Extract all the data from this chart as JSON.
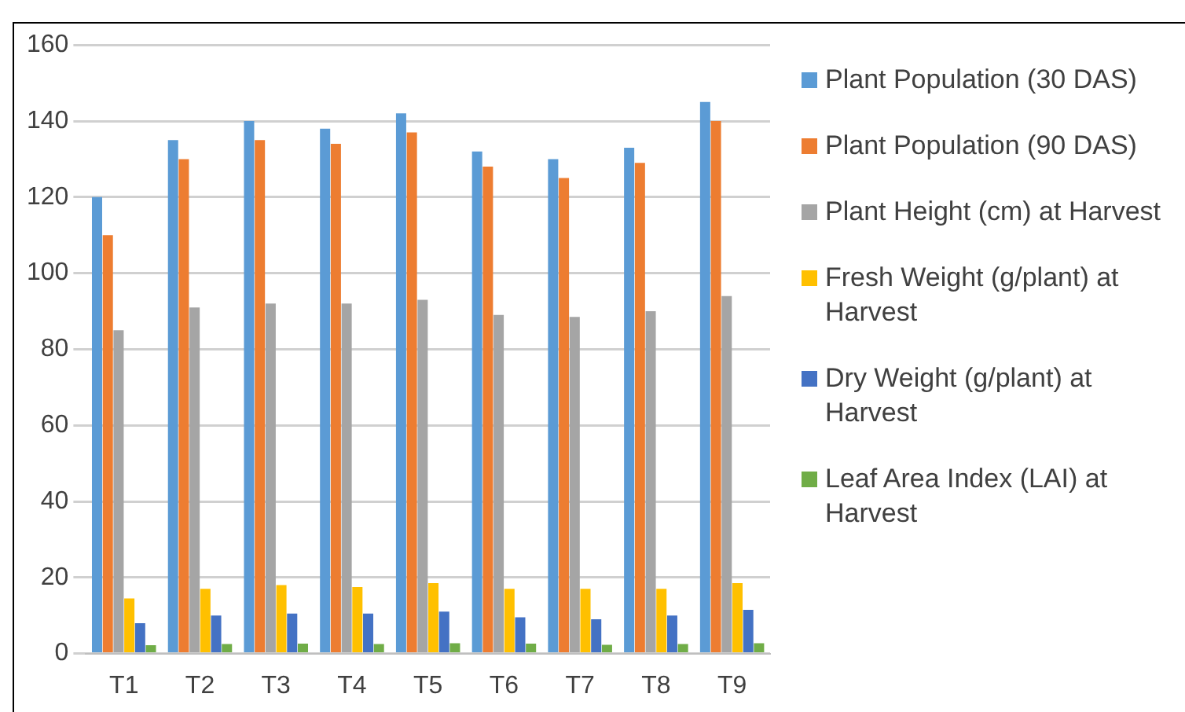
{
  "chart_data": {
    "type": "bar",
    "categories": [
      "T1",
      "T2",
      "T3",
      "T4",
      "T5",
      "T6",
      "T7",
      "T8",
      "T9"
    ],
    "series": [
      {
        "name": "Plant Population (30 DAS)",
        "color": "#5b9bd5",
        "values": [
          120,
          135,
          140,
          138,
          142,
          132,
          130,
          133,
          145
        ]
      },
      {
        "name": "Plant Population (90 DAS)",
        "color": "#ed7d31",
        "values": [
          110,
          130,
          135,
          134,
          137,
          128,
          125,
          129,
          140
        ]
      },
      {
        "name": "Plant Height (cm) at Harvest",
        "color": "#a5a5a5",
        "values": [
          85,
          91,
          92,
          92,
          93,
          89,
          88.5,
          90,
          94
        ]
      },
      {
        "name": "Fresh Weight (g/plant) at Harvest",
        "color": "#ffc000",
        "values": [
          14.5,
          17,
          18,
          17.5,
          18.5,
          17,
          17,
          17,
          18.5
        ]
      },
      {
        "name": "Dry Weight (g/plant) at Harvest",
        "color": "#4472c4",
        "values": [
          8,
          10,
          10.5,
          10.5,
          11,
          9.5,
          9,
          10,
          11.5
        ]
      },
      {
        "name": "Leaf Area Index (LAI) at Harvest",
        "color": "#70ad47",
        "values": [
          2.2,
          2.5,
          2.6,
          2.5,
          2.7,
          2.6,
          2.3,
          2.5,
          2.7
        ]
      }
    ],
    "ylim": [
      0,
      160
    ],
    "yticks": [
      0,
      20,
      40,
      60,
      80,
      100,
      120,
      140,
      160
    ],
    "grid": "y",
    "legend": "right"
  }
}
